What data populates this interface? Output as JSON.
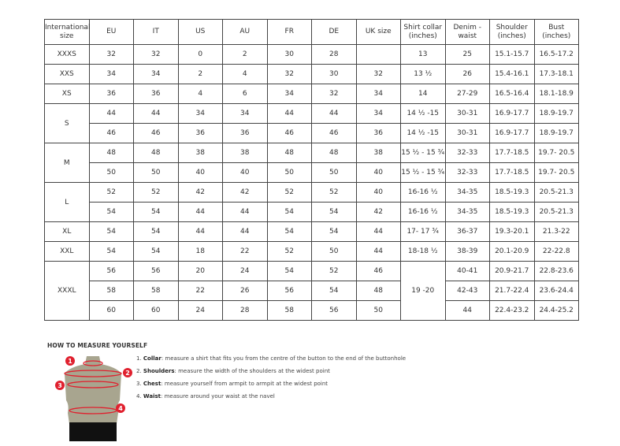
{
  "table": {
    "headers": [
      "International size",
      "EU",
      "IT",
      "US",
      "AU",
      "FR",
      "DE",
      "UK size",
      "Shirt collar (inches)",
      "Denim - waist",
      "Shoulder (inches)",
      "Bust (inches)"
    ],
    "rows": [
      {
        "intl": "XXXS",
        "span": 1,
        "cells": [
          "32",
          "32",
          "0",
          "2",
          "30",
          "28",
          "",
          "13",
          "25",
          "15.1-15.7",
          "16.5-17.2"
        ]
      },
      {
        "intl": "XXS",
        "span": 1,
        "cells": [
          "34",
          "34",
          "2",
          "4",
          "32",
          "30",
          "32",
          "13 ½",
          "26",
          "15.4-16.1",
          "17.3-18.1"
        ]
      },
      {
        "intl": "XS",
        "span": 1,
        "cells": [
          "36",
          "36",
          "4",
          "6",
          "34",
          "32",
          "34",
          "14",
          "27-29",
          "16.5-16.4",
          "18.1-18.9"
        ]
      },
      {
        "intl": "S",
        "span": 2,
        "cells": [
          "44",
          "44",
          "34",
          "34",
          "44",
          "44",
          "34",
          "14 ½ -15",
          "30-31",
          "16.9-17.7",
          "18.9-19.7"
        ]
      },
      {
        "cells": [
          "46",
          "46",
          "36",
          "36",
          "46",
          "46",
          "36",
          "14 ½ -15",
          "30-31",
          "16.9-17.7",
          "18.9-19.7"
        ]
      },
      {
        "intl": "M",
        "span": 2,
        "cells": [
          "48",
          "48",
          "38",
          "38",
          "48",
          "48",
          "38",
          "15 ½ - 15 ¾",
          "32-33",
          "17.7-18.5",
          "19.7- 20.5"
        ]
      },
      {
        "cells": [
          "50",
          "50",
          "40",
          "40",
          "50",
          "50",
          "40",
          "15 ½ - 15 ¾",
          "32-33",
          "17.7-18.5",
          "19.7- 20.5"
        ]
      },
      {
        "intl": "L",
        "span": 2,
        "cells": [
          "52",
          "52",
          "42",
          "42",
          "52",
          "52",
          "40",
          "16-16 ½",
          "34-35",
          "18.5-19.3",
          "20.5-21.3"
        ]
      },
      {
        "cells": [
          "54",
          "54",
          "44",
          "44",
          "54",
          "54",
          "42",
          "16-16 ½",
          "34-35",
          "18.5-19.3",
          "20.5-21.3"
        ]
      },
      {
        "intl": "XL",
        "span": 1,
        "cells": [
          "54",
          "54",
          "44",
          "44",
          "54",
          "54",
          "44",
          "17- 17 ¾",
          "36-37",
          "19.3-20.1",
          "21.3-22"
        ]
      },
      {
        "intl": "XXL",
        "span": 1,
        "cells": [
          "54",
          "54",
          "18",
          "22",
          "52",
          "50",
          "44",
          "18-18 ½",
          "38-39",
          "20.1-20.9",
          "22-22.8"
        ]
      },
      {
        "intl": "XXXL",
        "span": 3,
        "collar": "19 -20",
        "cells": [
          "56",
          "56",
          "20",
          "24",
          "54",
          "52",
          "46",
          null,
          "40-41",
          "20.9-21.7",
          "22.8-23.6"
        ]
      },
      {
        "cells": [
          "58",
          "58",
          "22",
          "26",
          "56",
          "54",
          "48",
          null,
          "42-43",
          "21.7-22.4",
          "23.6-24.4"
        ]
      },
      {
        "cells": [
          "60",
          "60",
          "24",
          "28",
          "58",
          "56",
          "50",
          null,
          "44",
          "22.4-23.2",
          "24.4-25.2"
        ]
      }
    ]
  },
  "measure": {
    "title": "HOW TO MEASURE YOURSELF",
    "steps": [
      {
        "num": "1.",
        "label": "Collar",
        "text": ": measure a shirt that fits you from the centre of the button to the end of the buttonhole"
      },
      {
        "num": "2.",
        "label": "Shoulders",
        "text": ": measure the width of the shoulders at the widest point"
      },
      {
        "num": "3.",
        "label": "Chest",
        "text": ": measure yourself from armpit to armpit at the widest point"
      },
      {
        "num": "4.",
        "label": "Waist",
        "text": ": measure around your waist at the navel"
      }
    ],
    "markers": [
      "1",
      "2",
      "3",
      "4"
    ],
    "accent": "#e0202e"
  }
}
